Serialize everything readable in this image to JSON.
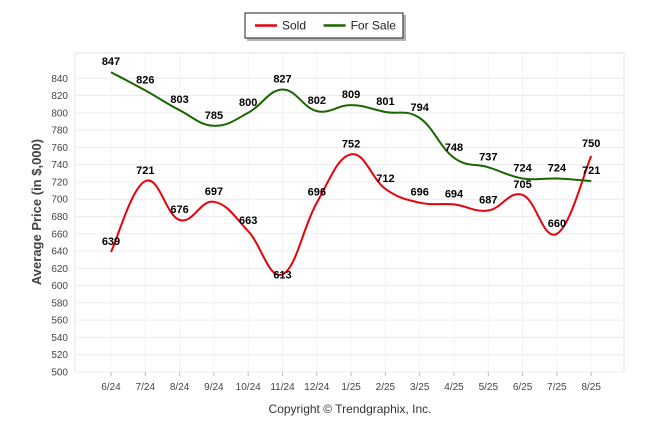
{
  "chart_data": {
    "type": "line",
    "categories": [
      "6/24",
      "7/24",
      "8/24",
      "9/24",
      "10/24",
      "11/24",
      "12/24",
      "1/25",
      "2/25",
      "3/25",
      "4/25",
      "5/25",
      "6/25",
      "7/25",
      "8/25"
    ],
    "series": [
      {
        "name": "Sold",
        "color": "#e8000b",
        "values": [
          639,
          721,
          676,
          697,
          663,
          613,
          696,
          752,
          712,
          696,
          694,
          687,
          705,
          660,
          750
        ]
      },
      {
        "name": "For Sale",
        "color": "#1a6600",
        "values": [
          847,
          826,
          803,
          785,
          800,
          827,
          802,
          809,
          801,
          794,
          748,
          737,
          724,
          724,
          721
        ]
      }
    ],
    "ylabel": "Average Price (in $,000)",
    "ylim": [
      500,
      860
    ],
    "ytick_step": 20,
    "grid": true,
    "legend": "top-center",
    "footer": "Copyright © Trendgraphix, Inc."
  }
}
